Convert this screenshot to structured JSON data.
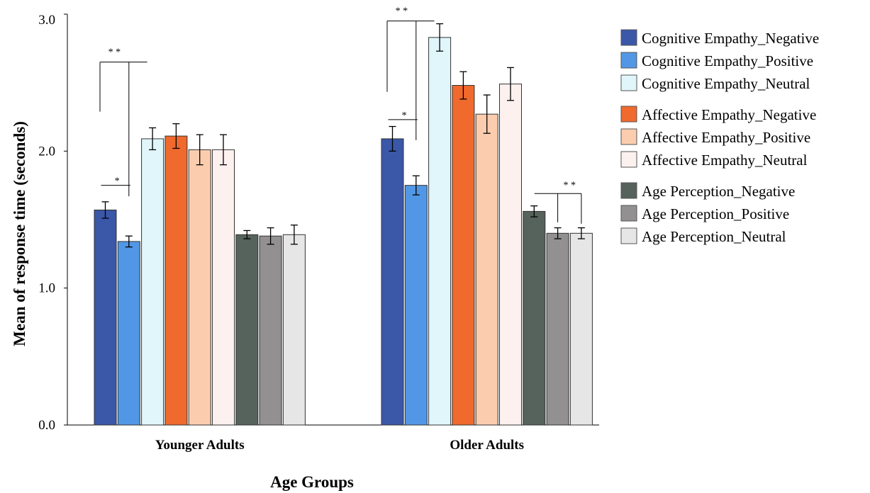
{
  "chart_data": {
    "type": "bar",
    "xlabel": "Age Groups",
    "ylabel": "Mean of response time (seconds)",
    "ylim": [
      0,
      3.0
    ],
    "yticks": [
      "0.0",
      "1.0",
      "2.0",
      "3.0"
    ],
    "categories": [
      "Younger Adults",
      "Older Adults"
    ],
    "grid": false,
    "legend_position": "right",
    "series": [
      {
        "name": "Cognitive Empathy_Negative",
        "color": "#3a57a8",
        "values": [
          1.57,
          2.09
        ],
        "errors": [
          0.06,
          0.09
        ]
      },
      {
        "name": "Cognitive Empathy_Positive",
        "color": "#5197e5",
        "values": [
          1.34,
          1.75
        ],
        "errors": [
          0.04,
          0.07
        ]
      },
      {
        "name": "Cognitive Empathy_Neutral",
        "color": "#e0f6fb",
        "values": [
          2.09,
          2.83
        ],
        "errors": [
          0.08,
          0.1
        ]
      },
      {
        "name": "Affective Empathy_Negative",
        "color": "#f0692d",
        "values": [
          2.11,
          2.48
        ],
        "errors": [
          0.09,
          0.1
        ]
      },
      {
        "name": "Affective Empathy_Positive",
        "color": "#fbcdae",
        "values": [
          2.01,
          2.27
        ],
        "errors": [
          0.11,
          0.14
        ]
      },
      {
        "name": "Affective Empathy_Neutral",
        "color": "#fdf1ef",
        "values": [
          2.01,
          2.49
        ],
        "errors": [
          0.11,
          0.12
        ]
      },
      {
        "name": "Age Perception_Negative",
        "color": "#56625c",
        "values": [
          1.39,
          1.56
        ],
        "errors": [
          0.03,
          0.04
        ]
      },
      {
        "name": "Age Perception_Positive",
        "color": "#929090",
        "values": [
          1.38,
          1.4
        ],
        "errors": [
          0.06,
          0.04
        ]
      },
      {
        "name": "Age Perception_Neutral",
        "color": "#e6e6e6",
        "values": [
          1.39,
          1.4
        ],
        "errors": [
          0.07,
          0.04
        ]
      }
    ],
    "legend_groups": [
      [
        0,
        1,
        2
      ],
      [
        3,
        4,
        5
      ],
      [
        6,
        7,
        8
      ]
    ],
    "annotations": [
      {
        "group": 0,
        "from": 0,
        "to": 1,
        "y": 1.75,
        "label": "*",
        "style": "line"
      },
      {
        "group": 0,
        "from": 0,
        "to": 1,
        "y": 2.65,
        "label": "* *",
        "style": "bracket-left"
      },
      {
        "group": 1,
        "from": 0,
        "to": 1,
        "y": 2.23,
        "label": "*",
        "style": "line"
      },
      {
        "group": 1,
        "from": 0,
        "to": 1,
        "y": 2.95,
        "label": "* *",
        "style": "bracket-left"
      },
      {
        "group": 1,
        "from": 7,
        "to": 8,
        "y": 1.69,
        "label": "* *",
        "style": "bracket-right"
      }
    ]
  }
}
